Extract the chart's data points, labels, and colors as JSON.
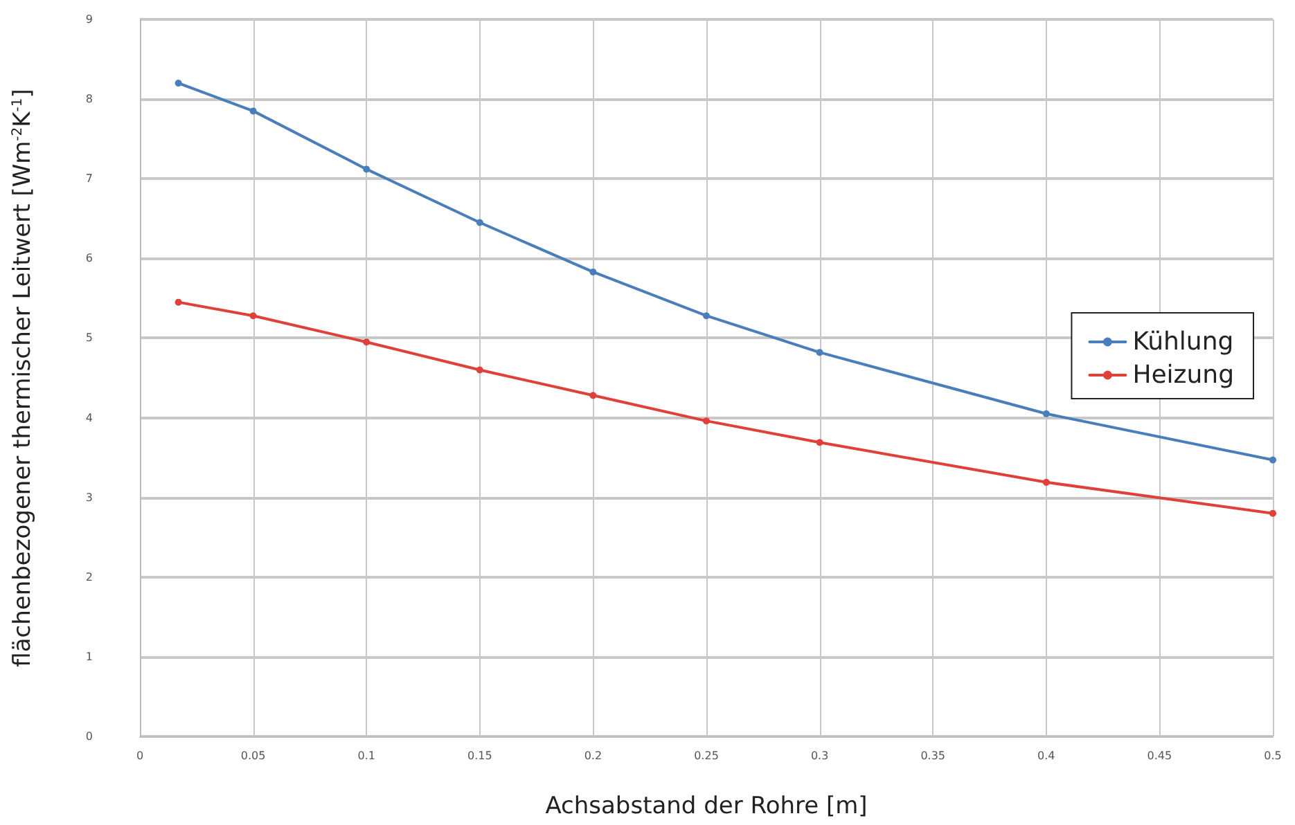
{
  "chart_data": {
    "type": "line",
    "xlabel": "Achsabstand der Rohre [m]",
    "ylabel": "flächenbezogener thermischer Leitwert [Wm$^{-2}$K$^{-1}$]",
    "x": [
      0.017,
      0.05,
      0.1,
      0.15,
      0.2,
      0.25,
      0.3,
      0.4,
      0.5
    ],
    "series": [
      {
        "name": "Kühlung",
        "color": "#4a7ebb",
        "values": [
          8.2,
          7.85,
          7.12,
          6.45,
          5.83,
          5.28,
          4.82,
          4.05,
          3.47
        ]
      },
      {
        "name": "Heizung",
        "color": "#e0403a",
        "values": [
          5.45,
          5.28,
          4.95,
          4.6,
          4.28,
          3.96,
          3.69,
          3.19,
          2.8
        ]
      }
    ],
    "xlim": [
      0,
      0.5
    ],
    "xticks": [
      0,
      0.05,
      0.1,
      0.15,
      0.2,
      0.25,
      0.3,
      0.35,
      0.4,
      0.45,
      0.5
    ],
    "ylim": [
      0,
      9
    ],
    "yticks": [
      0,
      1,
      2,
      3,
      4,
      5,
      6,
      7,
      8,
      9
    ],
    "grid": true,
    "legend": "right",
    "marker": "circle",
    "line_style": "solid"
  }
}
